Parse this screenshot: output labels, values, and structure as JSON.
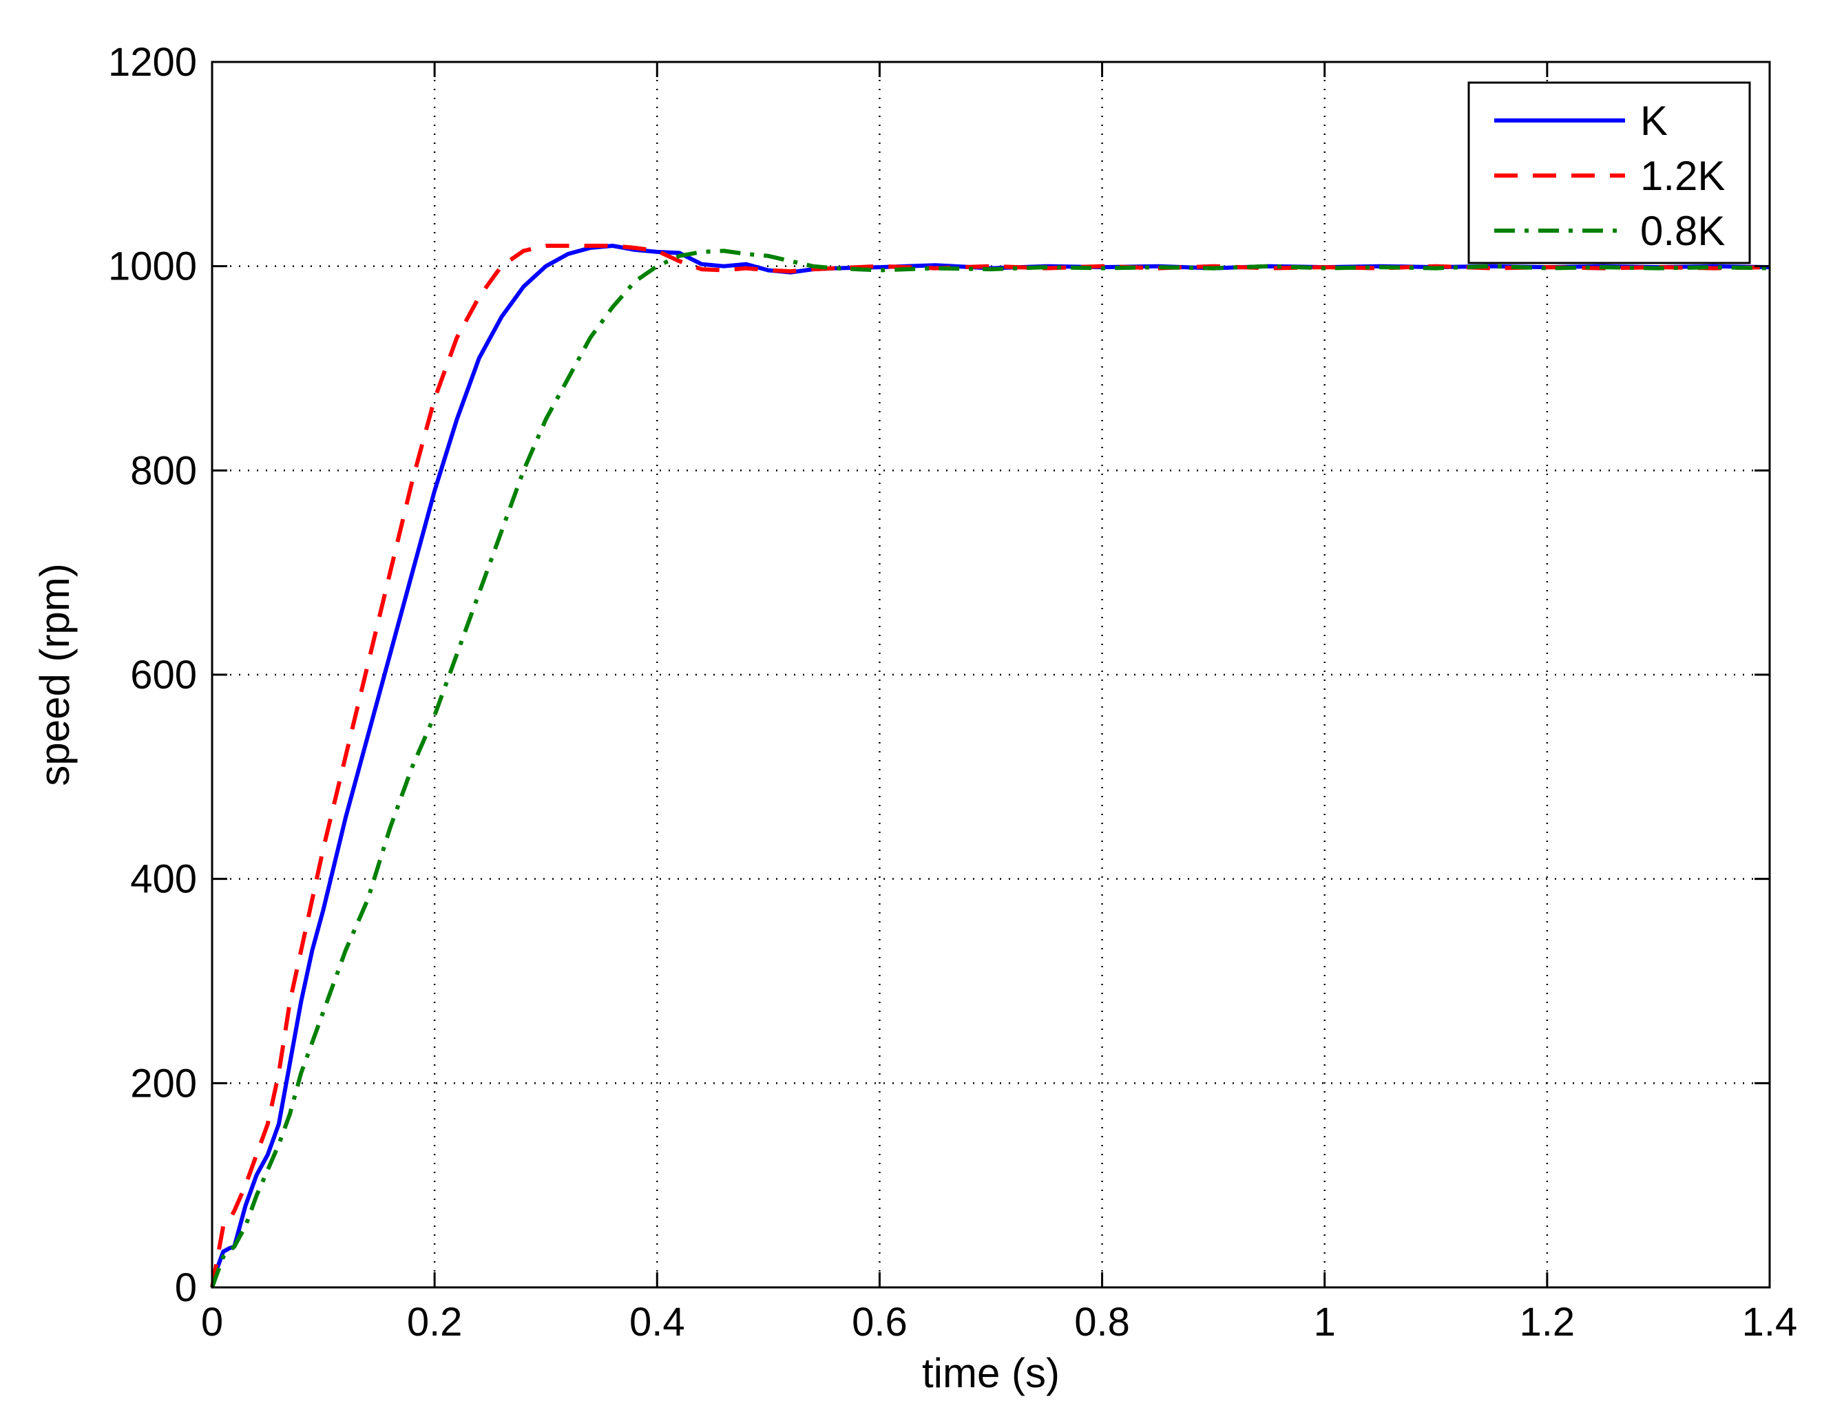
{
  "chart_data": {
    "type": "line",
    "xlabel": "time (s)",
    "ylabel": "speed (rpm)",
    "xlim": [
      0,
      1.4
    ],
    "ylim": [
      0,
      1200
    ],
    "xticks": [
      0,
      0.2,
      0.4,
      0.6,
      0.8,
      1,
      1.2,
      1.4
    ],
    "xtick_labels": [
      "0",
      "0.2",
      "0.4",
      "0.6",
      "0.8",
      "1",
      "1.2",
      "1.4"
    ],
    "yticks": [
      0,
      200,
      400,
      600,
      800,
      1000,
      1200
    ],
    "ytick_labels": [
      "0",
      "200",
      "400",
      "600",
      "800",
      "1000",
      "1200"
    ],
    "grid": true,
    "legend_position": "top-right",
    "series": [
      {
        "name": "K",
        "color": "#0000ff",
        "style": "solid",
        "x": [
          0,
          0.005,
          0.01,
          0.015,
          0.02,
          0.03,
          0.04,
          0.05,
          0.06,
          0.07,
          0.08,
          0.09,
          0.1,
          0.12,
          0.14,
          0.16,
          0.18,
          0.2,
          0.22,
          0.24,
          0.26,
          0.28,
          0.3,
          0.32,
          0.34,
          0.36,
          0.38,
          0.4,
          0.42,
          0.44,
          0.46,
          0.48,
          0.5,
          0.52,
          0.54,
          0.56,
          0.6,
          0.65,
          0.7,
          0.75,
          0.8,
          0.85,
          0.9,
          0.95,
          1.0,
          1.05,
          1.1,
          1.15,
          1.2,
          1.25,
          1.3,
          1.35,
          1.4
        ],
        "y": [
          0,
          20,
          35,
          38,
          40,
          80,
          110,
          130,
          160,
          220,
          280,
          330,
          370,
          460,
          540,
          620,
          700,
          780,
          850,
          910,
          950,
          980,
          1000,
          1012,
          1018,
          1020,
          1016,
          1014,
          1013,
          1002,
          1000,
          1002,
          996,
          994,
          997,
          998,
          999,
          1001,
          998,
          1000,
          999,
          1000,
          998,
          1000,
          999,
          1000,
          999,
          1000,
          999,
          1000,
          999,
          1000,
          999
        ]
      },
      {
        "name": "1.2K",
        "color": "#ff0000",
        "style": "dashed",
        "x": [
          0,
          0.005,
          0.01,
          0.015,
          0.02,
          0.03,
          0.04,
          0.05,
          0.06,
          0.07,
          0.08,
          0.1,
          0.12,
          0.14,
          0.16,
          0.18,
          0.2,
          0.22,
          0.24,
          0.26,
          0.28,
          0.3,
          0.32,
          0.34,
          0.36,
          0.38,
          0.4,
          0.42,
          0.44,
          0.46,
          0.48,
          0.5,
          0.52,
          0.54,
          0.56,
          0.6,
          0.65,
          0.7,
          0.75,
          0.8,
          0.85,
          0.9,
          0.95,
          1.0,
          1.05,
          1.1,
          1.15,
          1.2,
          1.25,
          1.3,
          1.35,
          1.4
        ],
        "y": [
          0,
          30,
          60,
          65,
          75,
          100,
          130,
          160,
          210,
          280,
          330,
          430,
          520,
          610,
          700,
          790,
          870,
          930,
          970,
          1000,
          1015,
          1020,
          1020,
          1020,
          1020,
          1018,
          1015,
          1005,
          997,
          996,
          998,
          996,
          995,
          997,
          998,
          1000,
          998,
          1000,
          998,
          1000,
          998,
          1000,
          998,
          999,
          998,
          1000,
          998,
          999,
          998,
          999,
          998,
          999
        ]
      },
      {
        "name": "0.8K",
        "color": "#008000",
        "style": "dashdot",
        "x": [
          0,
          0.005,
          0.01,
          0.015,
          0.02,
          0.03,
          0.04,
          0.05,
          0.06,
          0.07,
          0.08,
          0.1,
          0.12,
          0.14,
          0.16,
          0.18,
          0.2,
          0.22,
          0.24,
          0.26,
          0.28,
          0.3,
          0.32,
          0.34,
          0.36,
          0.38,
          0.4,
          0.42,
          0.44,
          0.46,
          0.48,
          0.5,
          0.52,
          0.54,
          0.56,
          0.58,
          0.6,
          0.65,
          0.7,
          0.75,
          0.8,
          0.85,
          0.9,
          0.95,
          1.0,
          1.05,
          1.1,
          1.15,
          1.2,
          1.25,
          1.3,
          1.35,
          1.4
        ],
        "y": [
          0,
          15,
          30,
          35,
          40,
          60,
          90,
          115,
          140,
          170,
          210,
          270,
          330,
          380,
          450,
          510,
          560,
          620,
          680,
          740,
          800,
          850,
          890,
          930,
          960,
          985,
          1000,
          1010,
          1014,
          1015,
          1012,
          1010,
          1005,
          1000,
          998,
          997,
          996,
          998,
          997,
          999,
          998,
          999,
          998,
          1000,
          998,
          999,
          998,
          1000,
          998,
          999,
          998,
          999,
          998
        ]
      }
    ]
  }
}
